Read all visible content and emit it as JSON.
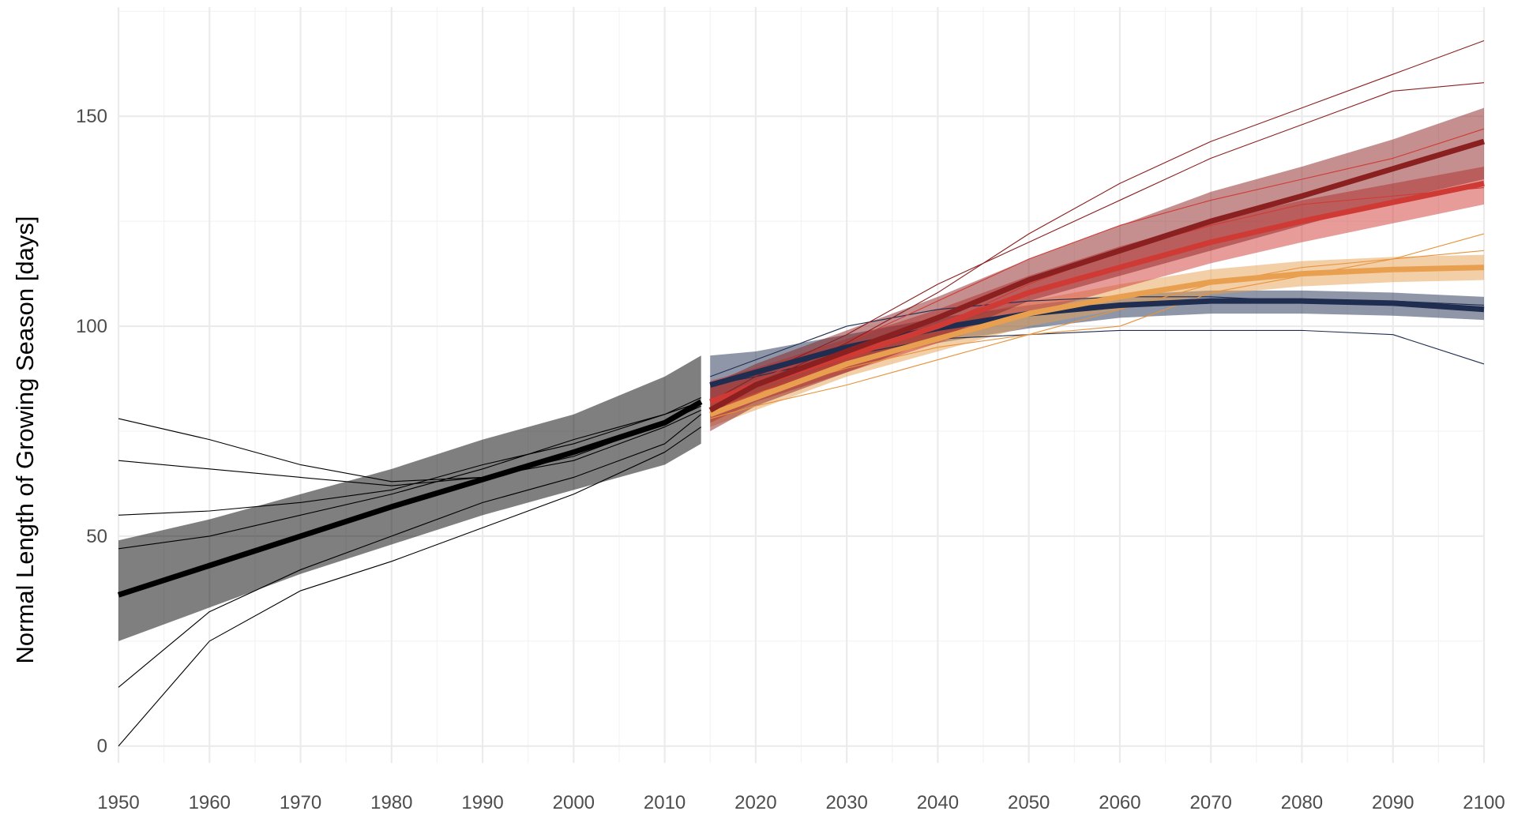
{
  "chart_data": {
    "type": "line",
    "ylabel": "Normal Length of Growing Season [days]",
    "xlim": [
      1950,
      2100
    ],
    "ylim": [
      -4,
      176
    ],
    "xticks": [
      1950,
      1960,
      1970,
      1980,
      1990,
      2000,
      2010,
      2020,
      2030,
      2040,
      2050,
      2060,
      2070,
      2080,
      2090,
      2100
    ],
    "yticks": [
      0,
      50,
      100,
      150
    ],
    "xminor": [
      1955,
      1965,
      1975,
      1985,
      1995,
      2005,
      2015,
      2025,
      2035,
      2045,
      2055,
      2065,
      2075,
      2085,
      2095
    ],
    "yminor": [
      25,
      75,
      125,
      175
    ],
    "grid": true,
    "series": [
      {
        "color": "#000000",
        "linewidth": 0.8,
        "x": [
          1950,
          1960,
          1970,
          1980,
          1990,
          2000,
          2010,
          2014
        ],
        "values": [
          78,
          73,
          67,
          63,
          64,
          68,
          76,
          80
        ]
      },
      {
        "color": "#000000",
        "linewidth": 0.8,
        "x": [
          1950,
          1960,
          1970,
          1980,
          1990,
          2000,
          2010,
          2014
        ],
        "values": [
          0,
          25,
          37,
          44,
          52,
          60,
          70,
          76
        ]
      },
      {
        "color": "#000000",
        "linewidth": 0.8,
        "x": [
          1950,
          1960,
          1970,
          1980,
          1990,
          2000,
          2010,
          2014
        ],
        "values": [
          47,
          50,
          55,
          60,
          66,
          73,
          79,
          83
        ]
      },
      {
        "color": "#000000",
        "linewidth": 0.8,
        "x": [
          1950,
          1960,
          1970,
          1980,
          1990,
          2000,
          2010,
          2014
        ],
        "values": [
          68,
          66,
          64,
          62,
          64,
          69,
          77,
          81
        ]
      },
      {
        "color": "#000000",
        "linewidth": 0.8,
        "x": [
          1950,
          1960,
          1970,
          1980,
          1990,
          2000,
          2010,
          2014
        ],
        "values": [
          14,
          32,
          42,
          50,
          58,
          64,
          72,
          79
        ]
      },
      {
        "color": "#000000",
        "linewidth": 0.8,
        "x": [
          1950,
          1960,
          1970,
          1980,
          1990,
          2000,
          2010,
          2014
        ],
        "values": [
          55,
          56,
          58,
          61,
          67,
          72,
          79,
          82
        ]
      },
      {
        "color": "#1f2d50",
        "linewidth": 0.8,
        "x": [
          2015,
          2020,
          2030,
          2040,
          2050,
          2060,
          2070,
          2080,
          2090,
          2100
        ],
        "values": [
          86,
          88,
          93,
          97,
          98,
          99,
          99,
          99,
          98,
          91
        ]
      },
      {
        "color": "#1f2d50",
        "linewidth": 0.8,
        "x": [
          2015,
          2020,
          2030,
          2040,
          2050,
          2060,
          2070,
          2080,
          2090,
          2100
        ],
        "values": [
          88,
          92,
          100,
          104,
          106,
          107,
          107,
          106,
          106,
          105
        ]
      },
      {
        "color": "#e8923a",
        "linewidth": 0.8,
        "x": [
          2015,
          2020,
          2030,
          2040,
          2050,
          2060,
          2070,
          2080,
          2090,
          2100
        ],
        "values": [
          80,
          84,
          90,
          95,
          98,
          100,
          108,
          112,
          116,
          122
        ]
      },
      {
        "color": "#e8923a",
        "linewidth": 0.8,
        "x": [
          2015,
          2020,
          2030,
          2040,
          2050,
          2060,
          2070,
          2080,
          2090,
          2100
        ],
        "values": [
          78,
          81,
          86,
          92,
          98,
          104,
          110,
          114,
          116,
          118
        ]
      },
      {
        "color": "#d03a35",
        "linewidth": 0.8,
        "x": [
          2015,
          2020,
          2030,
          2040,
          2050,
          2060,
          2070,
          2080,
          2090,
          2100
        ],
        "values": [
          82,
          87,
          96,
          106,
          116,
          124,
          130,
          135,
          140,
          147
        ]
      },
      {
        "color": "#d03a35",
        "linewidth": 0.8,
        "x": [
          2015,
          2020,
          2030,
          2040,
          2050,
          2060,
          2070,
          2080,
          2090,
          2100
        ],
        "values": [
          80,
          84,
          92,
          100,
          110,
          118,
          124,
          129,
          131,
          133
        ]
      },
      {
        "color": "#8b2020",
        "linewidth": 0.8,
        "x": [
          2015,
          2020,
          2030,
          2040,
          2050,
          2060,
          2070,
          2080,
          2090,
          2100
        ],
        "values": [
          79,
          86,
          96,
          108,
          122,
          134,
          144,
          152,
          160,
          168
        ]
      },
      {
        "color": "#8b2020",
        "linewidth": 0.8,
        "x": [
          2015,
          2020,
          2030,
          2040,
          2050,
          2060,
          2070,
          2080,
          2090,
          2100
        ],
        "values": [
          82,
          88,
          98,
          110,
          120,
          130,
          140,
          148,
          156,
          158
        ]
      },
      {
        "color": "#000000",
        "linewidth": 5,
        "x": [
          1950,
          1960,
          1970,
          1980,
          1990,
          2000,
          2010,
          2014
        ],
        "values": [
          36,
          43,
          50,
          57,
          63.5,
          70,
          77,
          82
        ],
        "lower": [
          25,
          33,
          41,
          48,
          55,
          61,
          67,
          72
        ],
        "upper": [
          49,
          54,
          60,
          66,
          73,
          79,
          88,
          93
        ]
      },
      {
        "color": "#1f2d50",
        "linewidth": 5,
        "x": [
          2015,
          2020,
          2030,
          2040,
          2050,
          2060,
          2070,
          2080,
          2090,
          2100
        ],
        "values": [
          86,
          89,
          95,
          99.5,
          103,
          105,
          106,
          106,
          105.5,
          104
        ],
        "lower": [
          80,
          84,
          91,
          96,
          99.5,
          102,
          103,
          103,
          102.5,
          101.5
        ],
        "upper": [
          93,
          94,
          98,
          102,
          105,
          107.5,
          108.5,
          108.5,
          108,
          107
        ]
      },
      {
        "color": "#e8a050",
        "linewidth": 5,
        "x": [
          2015,
          2020,
          2030,
          2040,
          2050,
          2060,
          2070,
          2080,
          2090,
          2100
        ],
        "values": [
          79,
          83,
          91,
          97,
          103,
          107,
          110.5,
          112.5,
          113.5,
          114
        ],
        "lower": [
          76,
          80,
          88,
          94,
          100,
          104,
          107.5,
          109.5,
          110.5,
          111
        ],
        "upper": [
          82,
          86,
          94,
          100,
          106,
          110,
          113.5,
          115.5,
          116.5,
          117
        ]
      },
      {
        "color": "#d03a35",
        "linewidth": 5,
        "x": [
          2015,
          2020,
          2030,
          2040,
          2050,
          2060,
          2070,
          2080,
          2090,
          2100
        ],
        "values": [
          82,
          86,
          93,
          100,
          108,
          114,
          120,
          125,
          129.5,
          134
        ],
        "lower": [
          77,
          82,
          89,
          96,
          103,
          109,
          115,
          120,
          124.5,
          129
        ],
        "upper": [
          87,
          90,
          97,
          104,
          112,
          119,
          125,
          130,
          134,
          138
        ]
      },
      {
        "color": "#8b2020",
        "linewidth": 5,
        "x": [
          2015,
          2020,
          2030,
          2040,
          2050,
          2060,
          2070,
          2080,
          2090,
          2100
        ],
        "values": [
          80,
          86,
          94,
          102,
          111,
          118,
          125,
          131,
          137.5,
          144
        ],
        "lower": [
          75,
          81,
          89,
          97,
          106,
          112,
          118,
          124,
          130,
          135
        ],
        "upper": [
          86,
          91,
          99,
          107,
          116,
          124,
          132,
          138,
          144.5,
          152
        ]
      }
    ]
  }
}
